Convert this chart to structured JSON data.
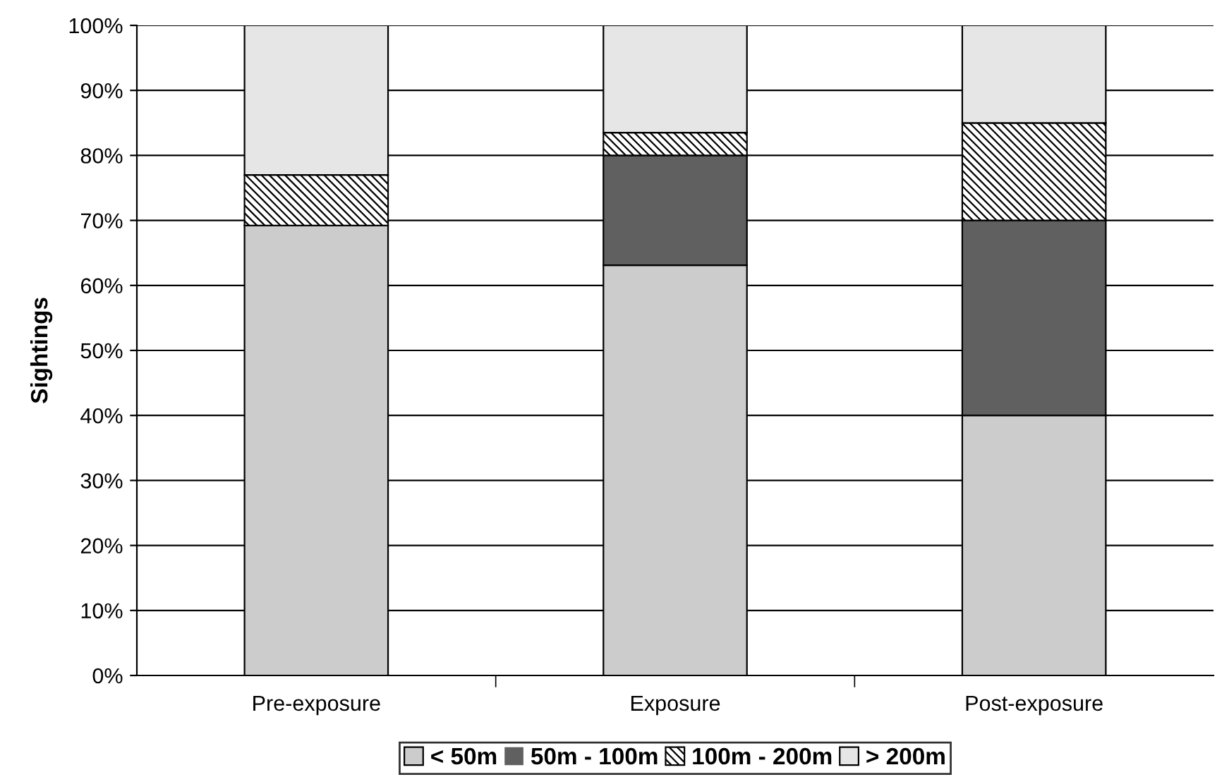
{
  "chart_data": {
    "type": "bar",
    "stacked": true,
    "ylabel": "Sightings",
    "categories": [
      "Pre-exposure",
      "Exposure",
      "Post-exposure"
    ],
    "series": [
      {
        "name": "< 50m",
        "color": "#cccccc",
        "values": [
          69.2,
          63.1,
          40
        ]
      },
      {
        "name": "50m - 100m",
        "color": "#606060",
        "values": [
          0,
          16.9,
          30
        ]
      },
      {
        "name": "100m - 200m",
        "color": "#000000",
        "values": [
          7.8,
          3.5,
          15
        ]
      },
      {
        "name": "> 200m",
        "color": "#e6e6e6",
        "values": [
          23,
          16.5,
          15
        ]
      }
    ],
    "ylim": [
      0,
      100
    ],
    "yticks": [
      {
        "value": 0,
        "label": "0%"
      },
      {
        "value": 10,
        "label": "10%"
      },
      {
        "value": 20,
        "label": "20%"
      },
      {
        "value": 30,
        "label": "30%"
      },
      {
        "value": 40,
        "label": "40%"
      },
      {
        "value": 50,
        "label": "50%"
      },
      {
        "value": 60,
        "label": "60%"
      },
      {
        "value": 70,
        "label": "70%"
      },
      {
        "value": 80,
        "label": "80%"
      },
      {
        "value": 90,
        "label": "90%"
      },
      {
        "value": 100,
        "label": "100%"
      }
    ],
    "grid": "y",
    "legend": "bottom"
  }
}
